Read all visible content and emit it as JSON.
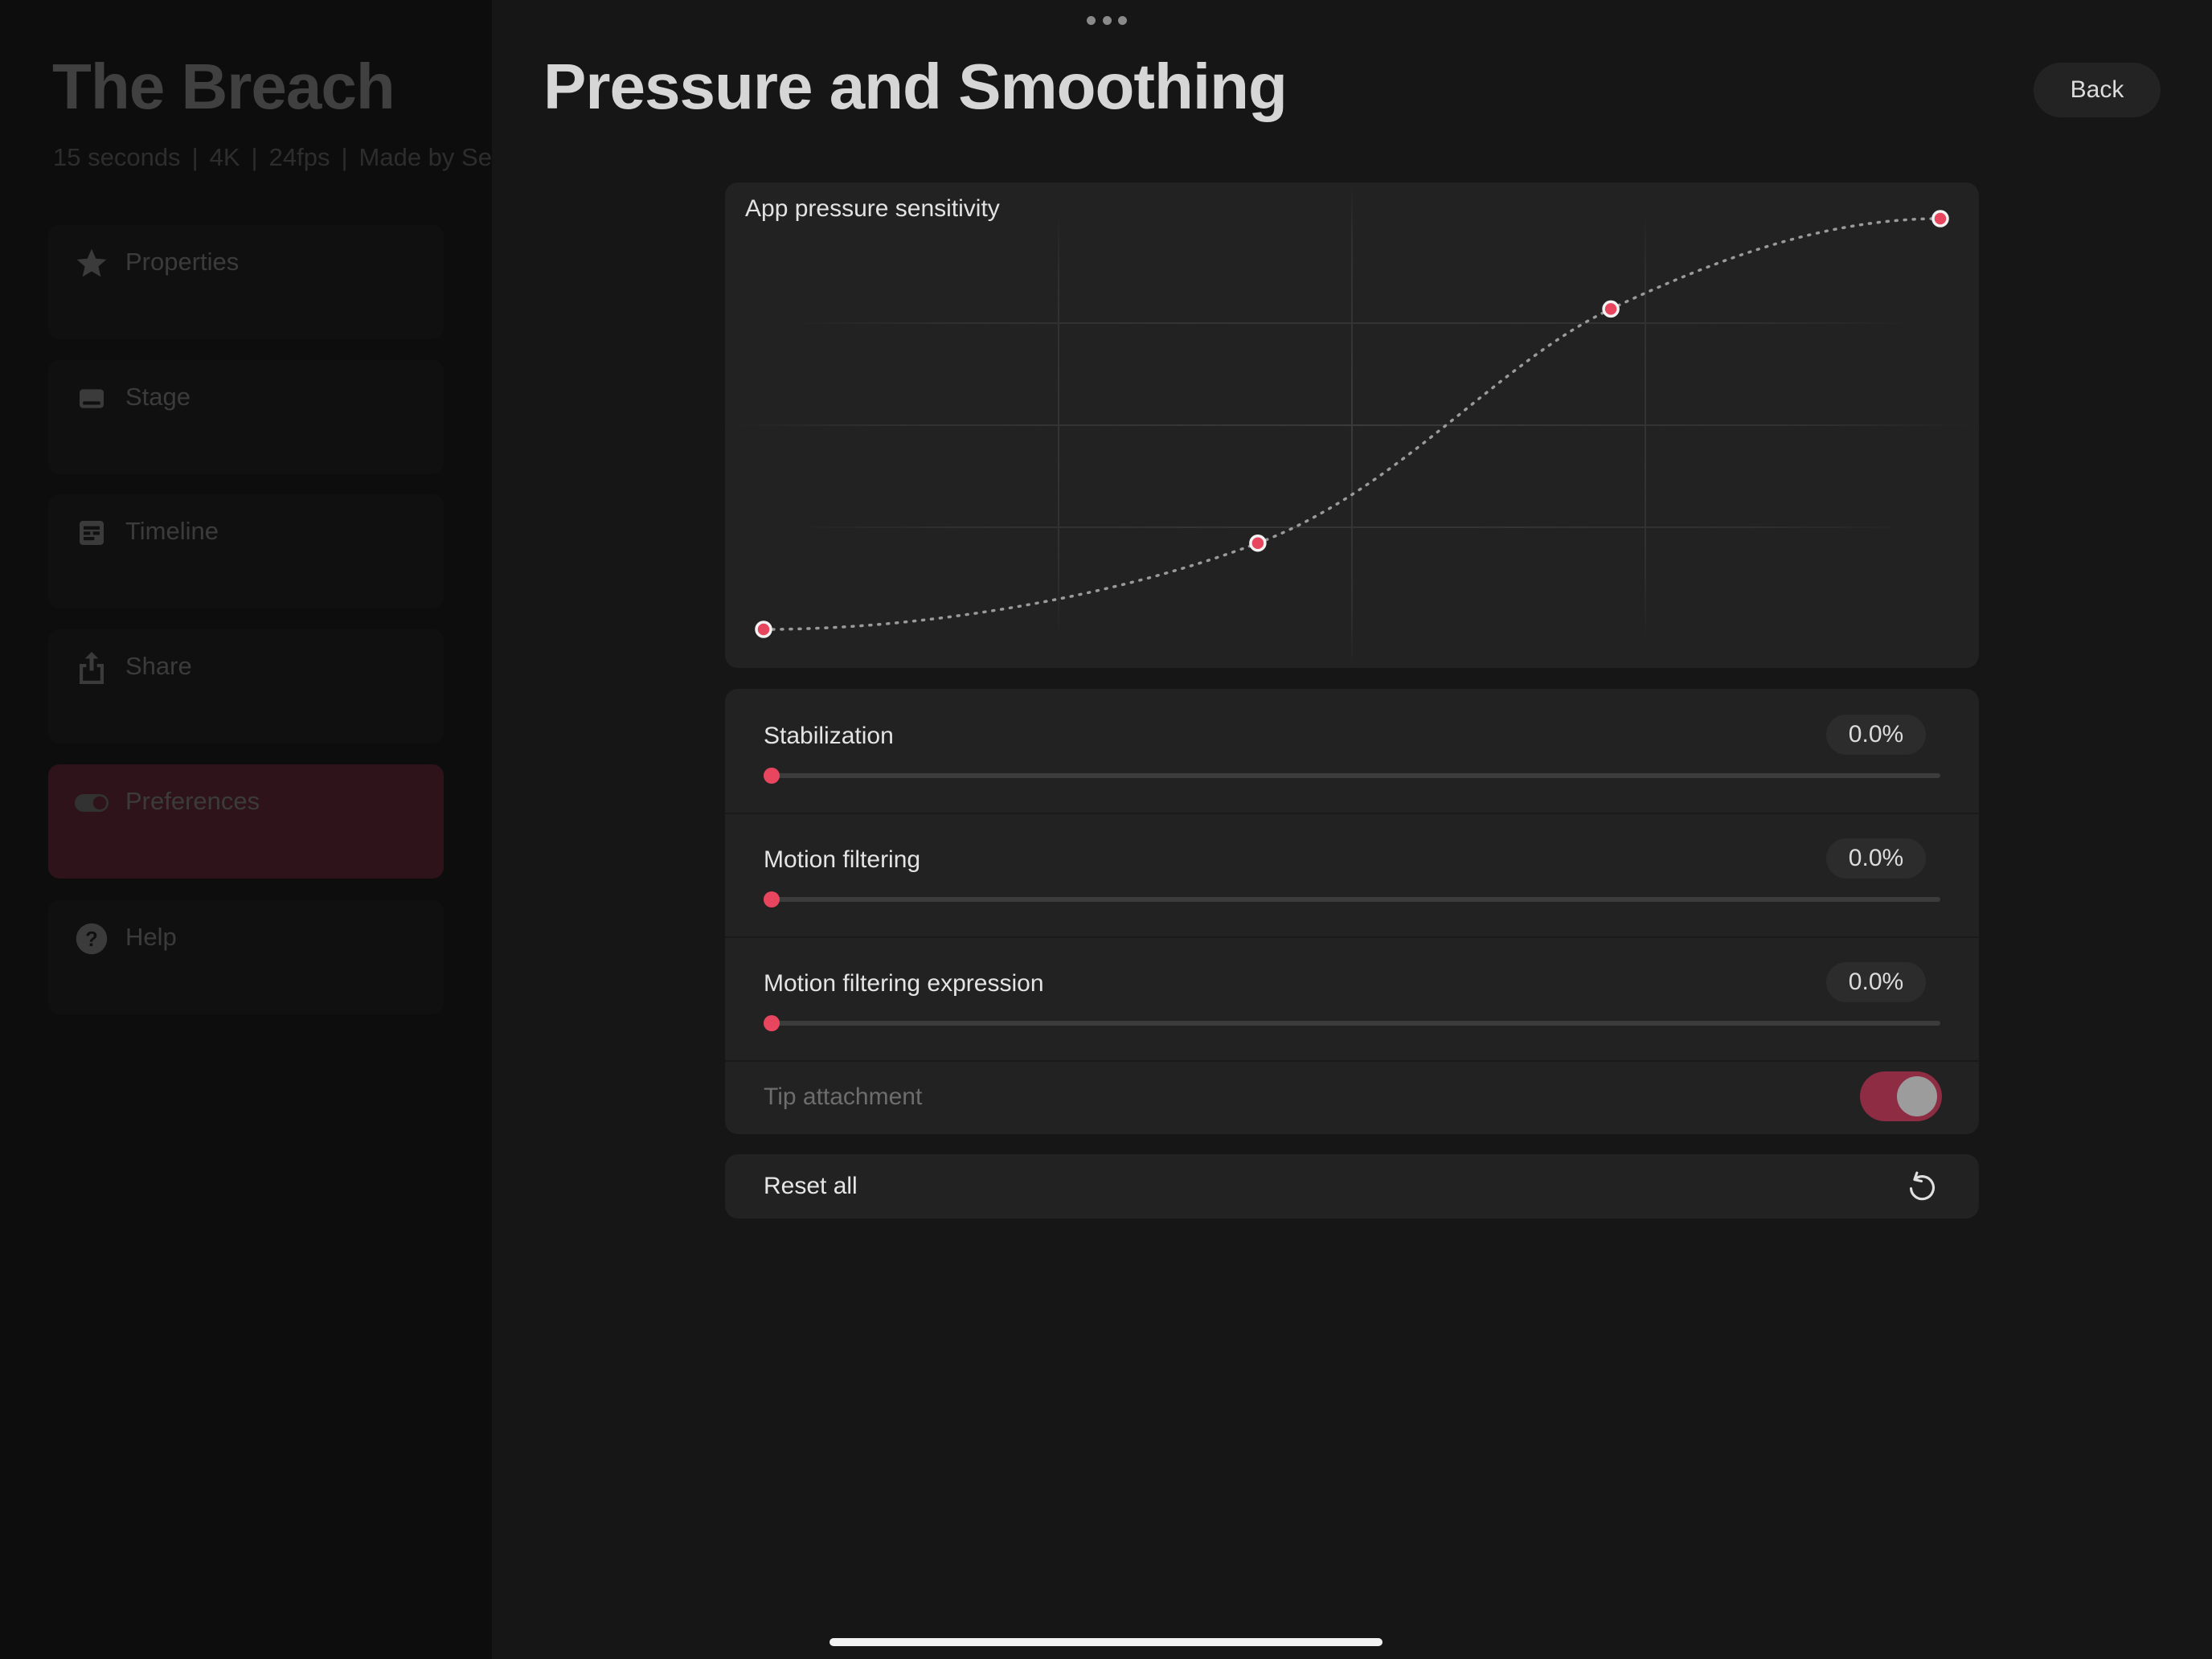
{
  "project": {
    "title": "The Breach",
    "meta": [
      "15 seconds",
      "4K",
      "24fps",
      "Made by Se"
    ]
  },
  "sidebar": {
    "items": [
      {
        "label": "Properties",
        "icon": "star-icon",
        "active": false
      },
      {
        "label": "Stage",
        "icon": "stage-icon",
        "active": false
      },
      {
        "label": "Timeline",
        "icon": "timeline-icon",
        "active": false
      },
      {
        "label": "Share",
        "icon": "share-icon",
        "active": false
      },
      {
        "label": "Preferences",
        "icon": "toggle-icon",
        "active": true
      },
      {
        "label": "Help",
        "icon": "help-icon",
        "active": false
      }
    ]
  },
  "header": {
    "title": "Pressure and Smoothing",
    "back_label": "Back"
  },
  "pressure_curve": {
    "label": "App pressure sensitivity",
    "control_points": [
      {
        "input": 0.0,
        "output": 0.0
      },
      {
        "input": 0.42,
        "output": 0.21
      },
      {
        "input": 0.72,
        "output": 0.78
      },
      {
        "input": 1.0,
        "output": 1.0
      }
    ]
  },
  "settings": {
    "sliders": [
      {
        "label": "Stabilization",
        "value_text": "0.0%",
        "value": 0.0
      },
      {
        "label": "Motion filtering",
        "value_text": "0.0%",
        "value": 0.0
      },
      {
        "label": "Motion filtering expression",
        "value_text": "0.0%",
        "value": 0.0
      }
    ],
    "tip_attachment": {
      "label": "Tip attachment",
      "on": true
    }
  },
  "reset": {
    "label": "Reset all",
    "icon": "reset-icon"
  },
  "colors": {
    "accent": "#e8455f",
    "active_nav": "#8e2c43",
    "card": "#222222",
    "background": "#161616"
  }
}
